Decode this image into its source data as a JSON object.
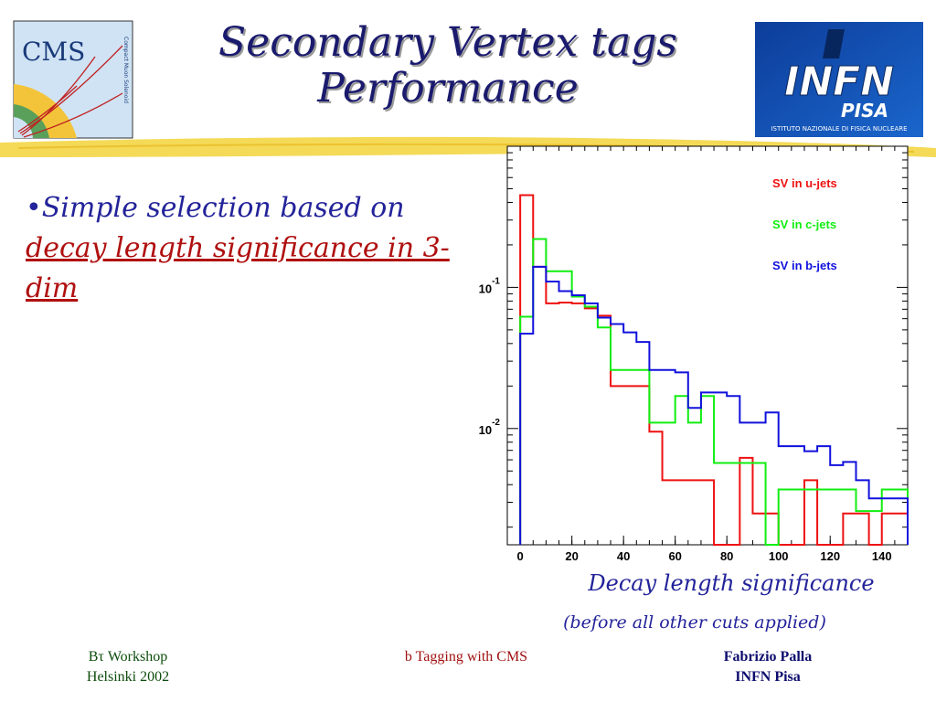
{
  "slide": {
    "title_line1": "Secondary Vertex tags",
    "title_line2": "Performance",
    "bullet_plain": "•Simple selection based on",
    "bullet_highlight": "decay length significance in 3-dim",
    "xaxis_label": "Decay length significance",
    "xaxis_note": "(before all other cuts applied)",
    "cms_logo_text": "CMS",
    "cms_logo_subtext": "Compact Muon Solenoid",
    "infn_logo_text": "INFN",
    "infn_logo_sub": "PISA",
    "infn_logo_tagline": "ISTITUTO NAZIONALE DI FISICA NUCLEARE",
    "footer": {
      "left_line1": "Bτ Workshop",
      "left_line2": "Helsinki 2002",
      "center": "b Tagging with CMS",
      "right_line1": "Fabrizio Palla",
      "right_line2": "INFN Pisa"
    }
  },
  "colors": {
    "title": "#1a1a6e",
    "bullet": "#23239a",
    "highlight": "#b01010",
    "u_jets": "#ee1111",
    "c_jets": "#11ee11",
    "b_jets": "#1111dd",
    "swoosh": "#f2d43a"
  },
  "chart_data": {
    "type": "line",
    "style": "step-histogram",
    "xlim": [
      -5,
      150
    ],
    "yscale": "log",
    "ylim": [
      0.0015,
      1
    ],
    "xticks": [
      0,
      20,
      40,
      60,
      80,
      100,
      120,
      140
    ],
    "ytick_labels": [
      {
        "value": 0.1,
        "base": "10",
        "exp": "-1"
      },
      {
        "value": 0.01,
        "base": "10",
        "exp": "-2"
      }
    ],
    "legend_position": "top-right",
    "bin_width": 5,
    "bin_start": 0,
    "series": [
      {
        "name": "SV in u-jets",
        "color": "#ee1111",
        "values": [
          0.45,
          0.14,
          0.077,
          0.078,
          0.077,
          0.071,
          0.063,
          0.02,
          0.02,
          0.02,
          0.0095,
          0.0043,
          0.0043,
          0.0043,
          0.0043,
          0.0,
          0.0,
          0.0062,
          0.0025,
          0.0025,
          0.0,
          0.0,
          0.0043,
          0.0,
          0.0,
          0.0025,
          0.0025,
          0.0,
          0.0025,
          0.0025
        ]
      },
      {
        "name": "SV in c-jets",
        "color": "#11ee11",
        "values": [
          0.062,
          0.22,
          0.13,
          0.13,
          0.086,
          0.073,
          0.052,
          0.026,
          0.026,
          0.026,
          0.011,
          0.011,
          0.017,
          0.011,
          0.017,
          0.0057,
          0.0057,
          0.0057,
          0.0057,
          0.0,
          0.0037,
          0.0037,
          0.0037,
          0.0037,
          0.0037,
          0.0037,
          0.0026,
          0.0026,
          0.0037,
          0.0037
        ]
      },
      {
        "name": "SV in b-jets",
        "color": "#1111dd",
        "values": [
          0.047,
          0.14,
          0.11,
          0.094,
          0.088,
          0.077,
          0.061,
          0.055,
          0.048,
          0.041,
          0.026,
          0.026,
          0.025,
          0.014,
          0.018,
          0.018,
          0.017,
          0.011,
          0.011,
          0.013,
          0.0075,
          0.0075,
          0.0069,
          0.0075,
          0.0055,
          0.0058,
          0.0043,
          0.0032,
          0.0032,
          0.0032
        ]
      }
    ]
  }
}
